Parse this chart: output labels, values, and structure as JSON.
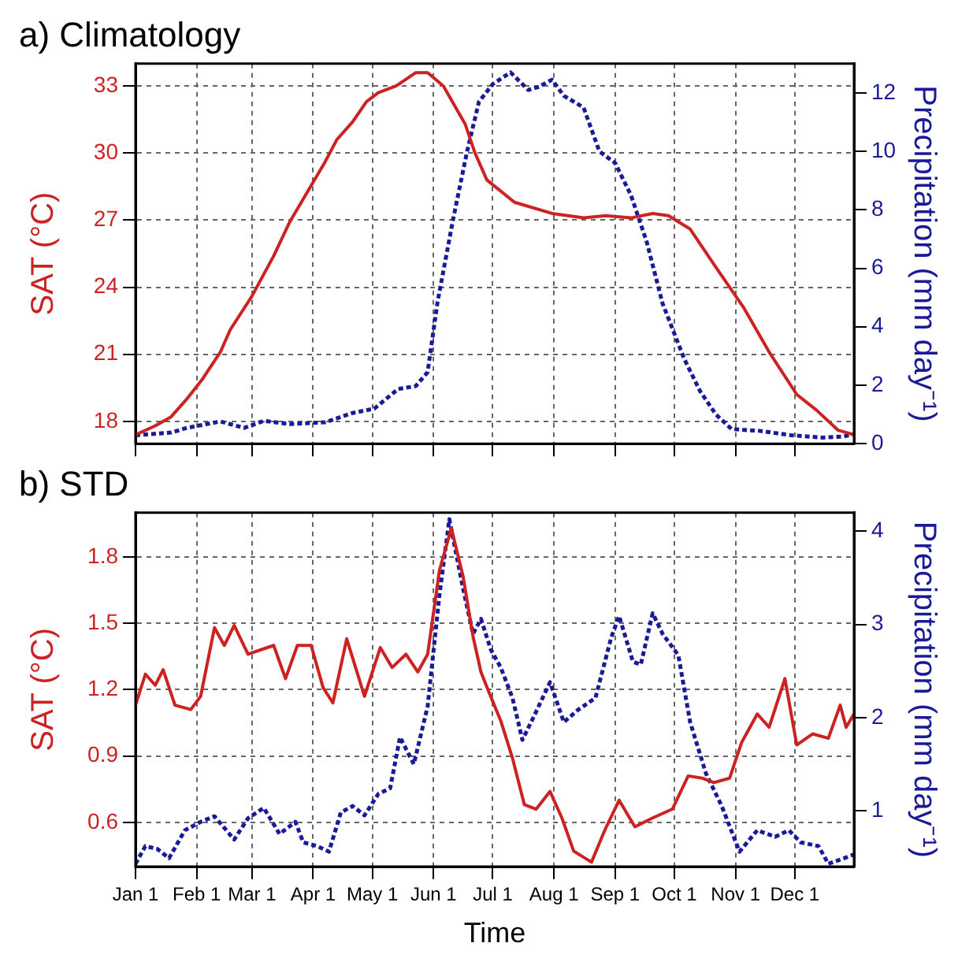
{
  "chart_data": [
    {
      "type": "line",
      "title": "a) Climatology",
      "ylabel": "SAT (°C)",
      "y2label": "Precipitation (mm day⁻¹)",
      "xlim": [
        "--01-01",
        "--12-31"
      ],
      "xticks": [
        {
          "value": "--01-01",
          "label": null
        },
        {
          "value": "--02-01",
          "label": null
        },
        {
          "value": "--03-01",
          "label": null
        },
        {
          "value": "--04-01",
          "label": null
        },
        {
          "value": "--05-01",
          "label": null
        },
        {
          "value": "--06-01",
          "label": null
        },
        {
          "value": "--07-01",
          "label": null
        },
        {
          "value": "--08-01",
          "label": null
        },
        {
          "value": "--09-01",
          "label": null
        },
        {
          "value": "--10-01",
          "label": null
        },
        {
          "value": "--11-01",
          "label": null
        },
        {
          "value": "--12-01",
          "label": null
        }
      ],
      "ylim": [
        17,
        34
      ],
      "yticks": [
        18,
        21,
        24,
        27,
        30,
        33
      ],
      "y2lim": [
        0,
        13
      ],
      "y2ticks": [
        0,
        2,
        4,
        6,
        8,
        10,
        12
      ],
      "grid": true,
      "tick_labels": "y",
      "series": [
        {
          "color": "#cc2222",
          "line_style": "solid",
          "x": [
            "--01-01",
            "--01-11",
            "--01-19",
            "--01-27",
            "--02-04",
            "--02-13",
            "--02-18",
            "--03-01",
            "--03-12",
            "--03-20",
            "--03-30",
            "--04-07",
            "--04-13",
            "--04-21",
            "--04-28",
            "--05-04",
            "--05-13",
            "--05-23",
            "--05-29",
            "--06-06",
            "--06-17",
            "--06-22",
            "--06-28",
            "--07-12",
            "--07-31",
            "--08-16",
            "--08-27",
            "--09-09",
            "--09-20",
            "--09-28",
            "--10-09",
            "--10-22",
            "--11-05",
            "--11-18",
            "--12-02",
            "--12-12",
            "--12-23",
            "--12-31"
          ],
          "values": [
            17.4,
            17.8,
            18.2,
            19.0,
            19.9,
            21.1,
            22.1,
            23.6,
            25.4,
            26.9,
            28.4,
            29.6,
            30.6,
            31.4,
            32.3,
            32.7,
            33.0,
            33.6,
            33.6,
            33.0,
            31.3,
            30.0,
            28.8,
            27.8,
            27.3,
            27.1,
            27.2,
            27.1,
            27.3,
            27.2,
            26.6,
            24.9,
            23.1,
            21.1,
            19.2,
            18.5,
            17.6,
            17.4
          ]
        },
        {
          "color": "#1a1a99",
          "line_style": "dotted",
          "axis": "y2",
          "x": [
            "--01-01",
            "--01-19",
            "--01-27",
            "--02-13",
            "--02-25",
            "--03-07",
            "--03-20",
            "--04-07",
            "--04-21",
            "--05-02",
            "--05-14",
            "--05-23",
            "--05-29",
            "--06-03",
            "--06-11",
            "--06-18",
            "--06-24",
            "--07-01",
            "--07-10",
            "--07-19",
            "--07-24",
            "--07-31",
            "--08-06",
            "--08-16",
            "--08-24",
            "--09-01",
            "--09-09",
            "--09-17",
            "--09-25",
            "--10-06",
            "--10-14",
            "--10-22",
            "--10-30",
            "--11-13",
            "--11-29",
            "--12-15",
            "--12-26",
            "--12-31"
          ],
          "values": [
            0.29,
            0.38,
            0.54,
            0.76,
            0.54,
            0.78,
            0.67,
            0.73,
            1.05,
            1.2,
            1.87,
            1.97,
            2.45,
            4.84,
            7.71,
            10.0,
            11.7,
            12.3,
            12.7,
            12.1,
            12.2,
            12.45,
            11.9,
            11.5,
            10.0,
            9.6,
            8.5,
            6.9,
            4.8,
            2.9,
            1.8,
            1.0,
            0.5,
            0.44,
            0.29,
            0.21,
            0.25,
            0.33
          ]
        }
      ]
    },
    {
      "type": "line",
      "title": "b) STD",
      "xlabel": "Time",
      "ylabel": "SAT (°C)",
      "y2label": "Precipitation (mm day⁻¹)",
      "xlim": [
        "--01-01",
        "--12-31"
      ],
      "xticks": [
        {
          "value": "--01-01",
          "label": "Jan 1"
        },
        {
          "value": "--02-01",
          "label": "Feb 1"
        },
        {
          "value": "--03-01",
          "label": "Mar 1"
        },
        {
          "value": "--04-01",
          "label": "Apr 1"
        },
        {
          "value": "--05-01",
          "label": "May 1"
        },
        {
          "value": "--06-01",
          "label": "Jun 1"
        },
        {
          "value": "--07-01",
          "label": "Jul 1"
        },
        {
          "value": "--08-01",
          "label": "Aug 1"
        },
        {
          "value": "--09-01",
          "label": "Sep 1"
        },
        {
          "value": "--10-01",
          "label": "Oct 1"
        },
        {
          "value": "--11-01",
          "label": "Nov 1"
        },
        {
          "value": "--12-01",
          "label": "Dec 1"
        }
      ],
      "ylim": [
        0.4,
        2.0
      ],
      "yticks": [
        0.6,
        0.9,
        1.2,
        1.5,
        1.8
      ],
      "y2lim": [
        0.4,
        4.2
      ],
      "y2ticks": [
        1,
        2,
        3,
        4
      ],
      "grid": true,
      "series": [
        {
          "color": "#cc2222",
          "line_style": "solid",
          "x": [
            "--01-01",
            "--01-06",
            "--01-11",
            "--01-15",
            "--01-21",
            "--01-29",
            "--02-03",
            "--02-10",
            "--02-15",
            "--02-20",
            "--02-27",
            "--03-12",
            "--03-18",
            "--03-24",
            "--03-31",
            "--04-06",
            "--04-11",
            "--04-18",
            "--04-27",
            "--05-05",
            "--05-11",
            "--05-18",
            "--05-24",
            "--05-29",
            "--06-04",
            "--06-10",
            "--06-16",
            "--06-21",
            "--06-25",
            "--06-29",
            "--07-05",
            "--07-11",
            "--07-17",
            "--07-23",
            "--07-30",
            "--08-05",
            "--08-11",
            "--08-20",
            "--08-27",
            "--09-03",
            "--09-11",
            "--09-20",
            "--09-30",
            "--10-08",
            "--10-15",
            "--10-21",
            "--10-29",
            "--11-04",
            "--11-12",
            "--11-18",
            "--11-26",
            "--12-02",
            "--12-10",
            "--12-18",
            "--12-24",
            "--12-27",
            "--12-31"
          ],
          "values": [
            1.13,
            1.27,
            1.22,
            1.29,
            1.13,
            1.11,
            1.17,
            1.48,
            1.4,
            1.49,
            1.36,
            1.4,
            1.25,
            1.4,
            1.4,
            1.21,
            1.14,
            1.43,
            1.17,
            1.39,
            1.3,
            1.36,
            1.28,
            1.36,
            1.74,
            1.93,
            1.71,
            1.44,
            1.28,
            1.19,
            1.06,
            0.89,
            0.68,
            0.66,
            0.74,
            0.62,
            0.47,
            0.42,
            0.57,
            0.7,
            0.58,
            0.62,
            0.66,
            0.81,
            0.8,
            0.78,
            0.8,
            0.96,
            1.09,
            1.03,
            1.25,
            0.95,
            1.0,
            0.98,
            1.13,
            1.03,
            1.09
          ]
        },
        {
          "color": "#1a1a99",
          "line_style": "dotted",
          "axis": "y2",
          "x": [
            "--01-01",
            "--01-06",
            "--01-12",
            "--01-18",
            "--01-26",
            "--02-03",
            "--02-10",
            "--02-20",
            "--02-27",
            "--03-07",
            "--03-15",
            "--03-23",
            "--03-27",
            "--04-03",
            "--04-09",
            "--04-15",
            "--04-21",
            "--04-27",
            "--05-04",
            "--05-10",
            "--05-15",
            "--05-22",
            "--05-29",
            "--06-04",
            "--06-09",
            "--06-16",
            "--06-21",
            "--06-25",
            "--06-30",
            "--07-05",
            "--07-11",
            "--07-16",
            "--07-22",
            "--07-30",
            "--08-06",
            "--08-13",
            "--08-22",
            "--08-30",
            "--09-03",
            "--09-10",
            "--09-14",
            "--09-20",
            "--09-25",
            "--10-03",
            "--10-09",
            "--10-17",
            "--10-25",
            "--11-03",
            "--11-12",
            "--11-21",
            "--11-28",
            "--12-04",
            "--12-13",
            "--12-18",
            "--12-26",
            "--12-31"
          ],
          "values": [
            0.43,
            0.62,
            0.59,
            0.49,
            0.79,
            0.88,
            0.94,
            0.69,
            0.92,
            1.03,
            0.75,
            0.88,
            0.66,
            0.62,
            0.56,
            0.98,
            1.05,
            0.95,
            1.18,
            1.24,
            1.79,
            1.5,
            2.12,
            3.32,
            4.13,
            3.38,
            2.9,
            3.06,
            2.73,
            2.54,
            2.21,
            1.76,
            2.02,
            2.38,
            1.95,
            2.08,
            2.21,
            2.86,
            3.09,
            2.6,
            2.57,
            3.12,
            2.9,
            2.67,
            1.95,
            1.4,
            1.05,
            0.56,
            0.79,
            0.72,
            0.79,
            0.66,
            0.62,
            0.43,
            0.49,
            0.53
          ]
        }
      ]
    }
  ]
}
